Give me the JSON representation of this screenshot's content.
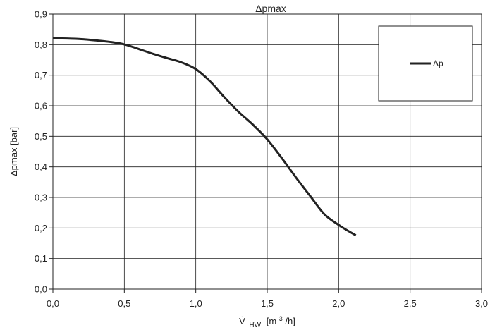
{
  "chart_data": {
    "type": "line",
    "title": "Δpmax",
    "ylabel": "Δpmax [bar]",
    "xlabel": {
      "symbol": "V̇",
      "subscript": "HW",
      "unit_prefix": "[m",
      "unit_sup": "3",
      "unit_suffix": "/h]"
    },
    "xlim": [
      0,
      3.0
    ],
    "ylim": [
      0,
      0.9
    ],
    "xticks": [
      0,
      0.5,
      1.0,
      1.5,
      2.0,
      2.5,
      3.0
    ],
    "xtick_labels": [
      "0,0",
      "0,5",
      "1,0",
      "1,5",
      "2,0",
      "2,5",
      "3,0"
    ],
    "yticks": [
      0,
      0.1,
      0.2,
      0.3,
      0.4,
      0.5,
      0.6,
      0.7,
      0.8,
      0.9
    ],
    "ytick_labels": [
      "0,0",
      "0,1",
      "0,2",
      "0,3",
      "0,4",
      "0,5",
      "0,6",
      "0,7",
      "0,8",
      "0,9"
    ],
    "grid": true,
    "legend_position": "top-right",
    "series": [
      {
        "name": "Δp",
        "color": "#222222",
        "x": [
          0.0,
          0.1,
          0.2,
          0.3,
          0.4,
          0.5,
          0.6,
          0.7,
          0.8,
          0.9,
          1.0,
          1.1,
          1.2,
          1.3,
          1.4,
          1.5,
          1.6,
          1.7,
          1.8,
          1.9,
          2.0,
          2.05,
          2.12
        ],
        "y": [
          0.821,
          0.82,
          0.818,
          0.814,
          0.809,
          0.801,
          0.786,
          0.77,
          0.756,
          0.742,
          0.72,
          0.68,
          0.628,
          0.58,
          0.538,
          0.49,
          0.43,
          0.366,
          0.305,
          0.245,
          0.21,
          0.195,
          0.176
        ]
      }
    ]
  }
}
